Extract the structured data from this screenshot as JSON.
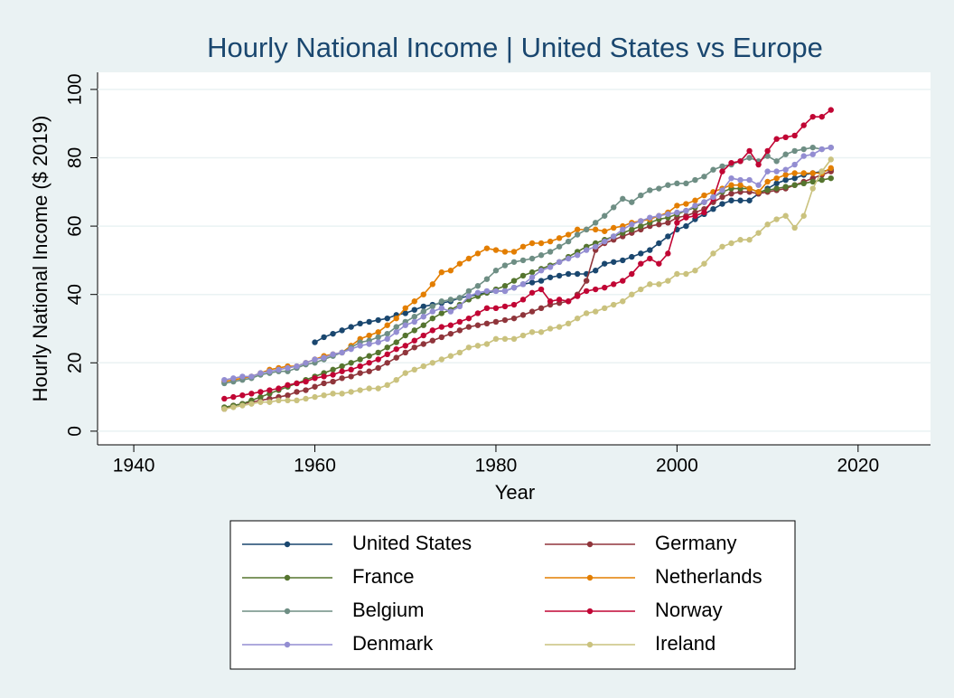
{
  "chart_data": {
    "type": "line",
    "title": "Hourly National Income | United States vs Europe",
    "xlabel": "Year",
    "ylabel": "Hourly National Income ($ 2019)",
    "x": [
      1950,
      1951,
      1952,
      1953,
      1954,
      1955,
      1956,
      1957,
      1958,
      1959,
      1960,
      1961,
      1962,
      1963,
      1964,
      1965,
      1966,
      1967,
      1968,
      1969,
      1970,
      1971,
      1972,
      1973,
      1974,
      1975,
      1976,
      1977,
      1978,
      1979,
      1980,
      1981,
      1982,
      1983,
      1984,
      1985,
      1986,
      1987,
      1988,
      1989,
      1990,
      1991,
      1992,
      1993,
      1994,
      1995,
      1996,
      1997,
      1998,
      1999,
      2000,
      2001,
      2002,
      2003,
      2004,
      2005,
      2006,
      2007,
      2008,
      2009,
      2010,
      2011,
      2012,
      2013,
      2014,
      2015,
      2016,
      2017
    ],
    "xlim": [
      1936,
      2028
    ],
    "xticks": [
      1940,
      1960,
      1980,
      2000,
      2020
    ],
    "ylim": [
      -4,
      105
    ],
    "yticks": [
      0,
      20,
      40,
      60,
      80,
      100
    ],
    "grid": true,
    "series": [
      {
        "name": "United States",
        "color": "#1a476f",
        "values": [
          null,
          null,
          null,
          null,
          null,
          null,
          null,
          null,
          null,
          null,
          26,
          27.5,
          28.5,
          29.5,
          30.5,
          31.5,
          32,
          32.5,
          33,
          34,
          34.5,
          35.5,
          36.5,
          37,
          37.5,
          38,
          39,
          39.5,
          40,
          40.5,
          41,
          41,
          42,
          43,
          43.5,
          44,
          45,
          45.5,
          46,
          46,
          46,
          47,
          49,
          49.5,
          50,
          51,
          52,
          53,
          55,
          57,
          59,
          60,
          62,
          63.5,
          65,
          66.5,
          67.5,
          67.5,
          67.5,
          69.5,
          71,
          72.5,
          73.5,
          74,
          75,
          75.5,
          76,
          76.5
        ]
      },
      {
        "name": "Germany",
        "color": "#90353b",
        "values": [
          6.5,
          7.5,
          8,
          8.5,
          9,
          9.5,
          10,
          10.5,
          11.5,
          12,
          13,
          14,
          14.5,
          15.5,
          16,
          17,
          17.5,
          18.5,
          20,
          21.5,
          23,
          24.5,
          25.5,
          26.5,
          27.5,
          28.5,
          29.5,
          30.5,
          31,
          31.5,
          32,
          32.5,
          33,
          34,
          35,
          36,
          37,
          37.5,
          38,
          40,
          44,
          53,
          55,
          56,
          57,
          58,
          59,
          60,
          60.5,
          61,
          62.5,
          63,
          64,
          65,
          67,
          68.5,
          69.5,
          70,
          70,
          69.5,
          70,
          70.5,
          71,
          72,
          73,
          74,
          75,
          76
        ]
      },
      {
        "name": "France",
        "color": "#55752f",
        "values": [
          7,
          7.5,
          8,
          9,
          10,
          11,
          12,
          13,
          14,
          15,
          16,
          17,
          18,
          19,
          20,
          21,
          22,
          23,
          24.5,
          26,
          28,
          29.5,
          31,
          33,
          34.5,
          35.5,
          37,
          38.5,
          39.5,
          40.5,
          41.5,
          42.5,
          44,
          45.5,
          46.5,
          47.5,
          48.5,
          49.5,
          51,
          52.5,
          54,
          55,
          56,
          57,
          58,
          59,
          60,
          61,
          62,
          62.5,
          63.5,
          64.5,
          65.5,
          67,
          68.5,
          70,
          71,
          71,
          71,
          70,
          70.5,
          71,
          71.5,
          72,
          72.5,
          73,
          73.5,
          74
        ]
      },
      {
        "name": "Netherlands",
        "color": "#e37e00",
        "values": [
          14.5,
          15,
          15.5,
          16,
          17,
          18,
          18.5,
          19,
          19,
          20,
          21,
          22,
          22.5,
          23,
          25,
          27,
          28,
          29,
          31,
          33,
          36,
          38,
          40,
          43,
          46.5,
          47,
          49,
          50.5,
          52,
          53.5,
          53,
          52.5,
          52.5,
          54,
          55,
          55,
          55.5,
          56.5,
          57.5,
          59,
          59,
          59,
          58.5,
          59.5,
          60,
          61,
          61.5,
          62,
          63,
          64,
          66,
          66.5,
          67.5,
          69,
          70,
          71,
          72,
          72,
          71,
          70,
          73,
          74,
          75,
          75.5,
          75.5,
          75.5,
          75.5,
          77
        ]
      },
      {
        "name": "Belgium",
        "color": "#6e8e84",
        "values": [
          14,
          14.5,
          15,
          15.5,
          16.5,
          17,
          17.5,
          17.5,
          18.5,
          19.5,
          20,
          21,
          22,
          23,
          24.5,
          26,
          26.5,
          27.5,
          28.5,
          30.5,
          32,
          33.5,
          35,
          36.5,
          38,
          38.5,
          39,
          41,
          42.5,
          44.5,
          47,
          48.5,
          49.5,
          50,
          50.5,
          51.5,
          52.5,
          54,
          55.5,
          57.5,
          59,
          61,
          63,
          65.5,
          68,
          67,
          69,
          70.5,
          71,
          72,
          72.5,
          72.5,
          73.5,
          74.5,
          76.5,
          77.5,
          78,
          79,
          80,
          79,
          80.5,
          79,
          81,
          82,
          82.5,
          83,
          82.5,
          83
        ]
      },
      {
        "name": "Norway",
        "color": "#c10534",
        "values": [
          9.5,
          10,
          10.5,
          11,
          11.5,
          12,
          12.5,
          13.5,
          14,
          14.5,
          15.5,
          16,
          16.5,
          17.5,
          18,
          19,
          20,
          21,
          22.5,
          24,
          25,
          26.5,
          28,
          29.5,
          30.5,
          31,
          32,
          33,
          34.5,
          36,
          36,
          36.5,
          37,
          38.5,
          40.5,
          41.5,
          38,
          38.5,
          38,
          39.5,
          41,
          41.5,
          42,
          43,
          44,
          46,
          49,
          50.5,
          49,
          52,
          61,
          62.5,
          63,
          64,
          68,
          76,
          78.5,
          79,
          82,
          78,
          82,
          85.5,
          86,
          86.5,
          89.5,
          92,
          92,
          94
        ]
      },
      {
        "name": "Denmark",
        "color": "#938dd2",
        "values": [
          15,
          15.5,
          16,
          16,
          17,
          17.5,
          18,
          18.5,
          19,
          20,
          21,
          21.5,
          22.5,
          23,
          24,
          25,
          25.5,
          26,
          27,
          29,
          31,
          32,
          33.5,
          35,
          36,
          35,
          36.5,
          39.5,
          40.5,
          41,
          41,
          41,
          42,
          43,
          45,
          47,
          48,
          49.5,
          50.5,
          51.5,
          53,
          54,
          55.5,
          57,
          59,
          60.5,
          61.5,
          62.5,
          63,
          63.5,
          64,
          64.5,
          66,
          67,
          68.5,
          70.5,
          74,
          73.5,
          73.5,
          72,
          76,
          76,
          76.5,
          78,
          80.5,
          81,
          82.5,
          83
        ]
      },
      {
        "name": "Ireland",
        "color": "#cac27e",
        "values": [
          6.5,
          7,
          7.5,
          8,
          8.5,
          8.5,
          9,
          9,
          9,
          9.5,
          10,
          10.5,
          11,
          11,
          11.5,
          12,
          12.5,
          12.5,
          13.5,
          15,
          17,
          18,
          19,
          20,
          21,
          22,
          23,
          24.5,
          25,
          25.5,
          27,
          27,
          27,
          28,
          29,
          29,
          30,
          30.5,
          31.5,
          33,
          34.5,
          35,
          36,
          37,
          38,
          40,
          41.5,
          43,
          43,
          44,
          46,
          46,
          47,
          49,
          52,
          54,
          55,
          56,
          56,
          58,
          60.5,
          62,
          63,
          59.5,
          63,
          71,
          76,
          79.5
        ]
      }
    ]
  }
}
